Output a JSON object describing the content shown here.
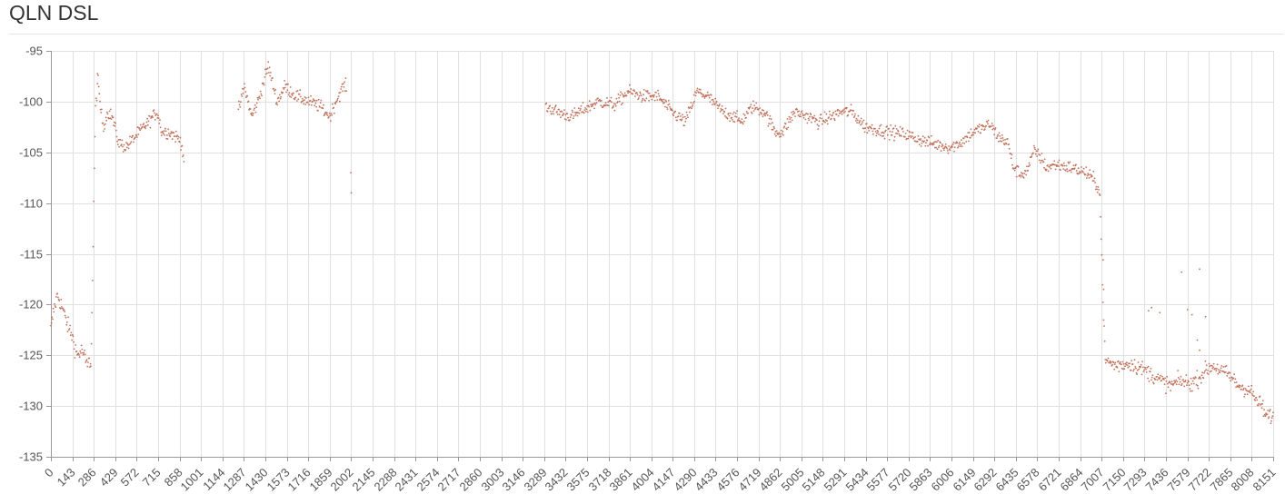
{
  "page": {
    "title": "QLN DSL"
  },
  "style": {
    "point_color": "#c0715a",
    "grid_color": "#e0e0e0",
    "axis_color": "#999999"
  },
  "chart_data": {
    "type": "scatter",
    "title": "QLN DSL",
    "xlabel": "",
    "ylabel": "",
    "xlim": [
      0,
      8151
    ],
    "ylim": [
      -135,
      -95
    ],
    "grid": true,
    "legend": "none",
    "x_ticks": [
      0,
      143,
      286,
      429,
      572,
      715,
      858,
      1001,
      1144,
      1287,
      1430,
      1573,
      1716,
      1859,
      2002,
      2145,
      2288,
      2431,
      2574,
      2717,
      2860,
      3003,
      3146,
      3289,
      3432,
      3575,
      3718,
      3861,
      4004,
      4147,
      4290,
      4433,
      4576,
      4719,
      4862,
      5005,
      5148,
      5291,
      5434,
      5577,
      5720,
      5863,
      6006,
      6149,
      6292,
      6435,
      6578,
      6721,
      6864,
      7007,
      7150,
      7293,
      7436,
      7579,
      7722,
      7865,
      8008,
      8151
    ],
    "y_ticks": [
      -95,
      -100,
      -105,
      -110,
      -115,
      -120,
      -125,
      -130,
      -135
    ],
    "series": [
      {
        "color": "#c0715a",
        "step": 4,
        "segments": [
          {
            "x0": 0,
            "x1": 265,
            "points": [
              [
                0,
                -122.5
              ],
              [
                20,
                -120.5
              ],
              [
                45,
                -119.0
              ],
              [
                80,
                -120.5
              ],
              [
                110,
                -122.0
              ],
              [
                140,
                -123.0
              ],
              [
                175,
                -125.0
              ],
              [
                210,
                -124.5
              ],
              [
                240,
                -126.0
              ],
              [
                265,
                -125.5
              ]
            ],
            "noise": 0.6
          },
          {
            "x0": 266,
            "x1": 310,
            "points": [
              [
                266,
                -126.0
              ],
              [
                278,
                -118.0
              ],
              [
                288,
                -108.0
              ],
              [
                298,
                -101.0
              ],
              [
                310,
                -98.0
              ]
            ],
            "noise": 0.6
          },
          {
            "x0": 311,
            "x1": 890,
            "points": [
              [
                311,
                -97.5
              ],
              [
                330,
                -100.5
              ],
              [
                350,
                -102.5
              ],
              [
                380,
                -101.0
              ],
              [
                410,
                -101.5
              ],
              [
                450,
                -104.0
              ],
              [
                500,
                -104.5
              ],
              [
                560,
                -103.5
              ],
              [
                620,
                -102.5
              ],
              [
                680,
                -101.5
              ],
              [
                710,
                -101.0
              ],
              [
                740,
                -103.0
              ],
              [
                790,
                -103.0
              ],
              [
                840,
                -103.5
              ],
              [
                870,
                -104.0
              ],
              [
                890,
                -106.0
              ]
            ],
            "noise": 0.45
          },
          {
            "x0": 1250,
            "x1": 1970,
            "points": [
              [
                1250,
                -101.0
              ],
              [
                1290,
                -98.5
              ],
              [
                1340,
                -101.5
              ],
              [
                1380,
                -100.0
              ],
              [
                1430,
                -97.5
              ],
              [
                1450,
                -96.5
              ],
              [
                1475,
                -98.0
              ],
              [
                1510,
                -100.0
              ],
              [
                1560,
                -98.5
              ],
              [
                1640,
                -99.5
              ],
              [
                1720,
                -100.0
              ],
              [
                1800,
                -100.5
              ],
              [
                1860,
                -101.5
              ],
              [
                1900,
                -100.0
              ],
              [
                1950,
                -98.5
              ],
              [
                1970,
                -98.5
              ]
            ],
            "noise": 0.45
          },
          {
            "x0": 3300,
            "x1": 6995,
            "points": [
              [
                3300,
                -100.5
              ],
              [
                3380,
                -101.0
              ],
              [
                3470,
                -101.5
              ],
              [
                3550,
                -100.8
              ],
              [
                3650,
                -100.0
              ],
              [
                3760,
                -100.3
              ],
              [
                3850,
                -99.0
              ],
              [
                3950,
                -99.5
              ],
              [
                4050,
                -99.5
              ],
              [
                4140,
                -101.0
              ],
              [
                4230,
                -102.0
              ],
              [
                4310,
                -99.0
              ],
              [
                4380,
                -99.5
              ],
              [
                4480,
                -101.0
              ],
              [
                4560,
                -101.5
              ],
              [
                4600,
                -102.0
              ],
              [
                4680,
                -100.5
              ],
              [
                4760,
                -101.0
              ],
              [
                4830,
                -103.0
              ],
              [
                4880,
                -103.0
              ],
              [
                4960,
                -101.0
              ],
              [
                5050,
                -101.5
              ],
              [
                5120,
                -102.0
              ],
              [
                5200,
                -101.5
              ],
              [
                5270,
                -101.0
              ],
              [
                5340,
                -101.0
              ],
              [
                5430,
                -102.5
              ],
              [
                5520,
                -102.8
              ],
              [
                5600,
                -103.0
              ],
              [
                5700,
                -103.2
              ],
              [
                5800,
                -103.8
              ],
              [
                5900,
                -104.2
              ],
              [
                6000,
                -104.5
              ],
              [
                6070,
                -104.0
              ],
              [
                6150,
                -103.0
              ],
              [
                6230,
                -102.5
              ],
              [
                6260,
                -102.2
              ],
              [
                6320,
                -103.5
              ],
              [
                6380,
                -104.0
              ],
              [
                6420,
                -106.5
              ],
              [
                6470,
                -107.2
              ],
              [
                6510,
                -106.8
              ],
              [
                6560,
                -104.8
              ],
              [
                6600,
                -105.5
              ],
              [
                6640,
                -106.5
              ],
              [
                6700,
                -106.2
              ],
              [
                6800,
                -106.5
              ],
              [
                6900,
                -107.0
              ],
              [
                6960,
                -107.8
              ],
              [
                6995,
                -108.8
              ]
            ],
            "noise": 0.45
          },
          {
            "x0": 6996,
            "x1": 7030,
            "points": [
              [
                6996,
                -109.5
              ],
              [
                7005,
                -114.0
              ],
              [
                7015,
                -119.0
              ],
              [
                7030,
                -125.0
              ]
            ],
            "noise": 0.5
          },
          {
            "x0": 7031,
            "x1": 8151,
            "points": [
              [
                7031,
                -125.5
              ],
              [
                7100,
                -126.0
              ],
              [
                7200,
                -125.8
              ],
              [
                7300,
                -126.5
              ],
              [
                7400,
                -127.5
              ],
              [
                7470,
                -128.0
              ],
              [
                7530,
                -127.5
              ],
              [
                7600,
                -127.8
              ],
              [
                7660,
                -127.2
              ],
              [
                7700,
                -126.5
              ],
              [
                7750,
                -126.0
              ],
              [
                7800,
                -126.5
              ],
              [
                7860,
                -127.0
              ],
              [
                7920,
                -128.0
              ],
              [
                8000,
                -128.5
              ],
              [
                8040,
                -129.5
              ],
              [
                8080,
                -130.0
              ],
              [
                8100,
                -131.0
              ]
            ],
            "noise": 0.55
          }
        ],
        "outliers": [
          [
            2000,
            -107.0
          ],
          [
            2003,
            -109.0
          ],
          [
            7017,
            -115.6
          ],
          [
            7020,
            -118.5
          ],
          [
            7340,
            -120.3
          ],
          [
            7395,
            -120.8
          ],
          [
            7540,
            -116.8
          ],
          [
            7580,
            -120.5
          ],
          [
            7610,
            -121.0
          ],
          [
            7660,
            -116.5
          ],
          [
            7700,
            -121.2
          ],
          [
            7645,
            -123.5
          ],
          [
            7660,
            -124.5
          ],
          [
            7320,
            -120.6
          ]
        ]
      }
    ]
  }
}
